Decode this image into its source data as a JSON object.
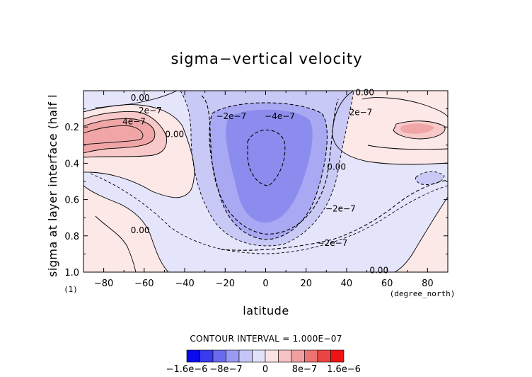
{
  "chart_data": {
    "type": "contour",
    "title": "sigma−vertical velocity",
    "xlabel": "latitude",
    "x_unit": "(degree_north)",
    "ylabel": "sigma at layer interface (half l",
    "y_unit": "(1)",
    "xlim": [
      -90,
      90
    ],
    "ylim": [
      1.0,
      0.0
    ],
    "x_ticks": [
      -80,
      -60,
      -40,
      -20,
      0,
      20,
      40,
      60,
      80
    ],
    "y_ticks": [
      0.2,
      0.4,
      0.6,
      0.8,
      1.0
    ],
    "x_tick_labels": [
      "−80",
      "−60",
      "−40",
      "−20",
      "0",
      "20",
      "40",
      "60",
      "80"
    ],
    "y_tick_labels": [
      "0.2",
      "0.4",
      "0.6",
      "0.8",
      "1.0"
    ],
    "contour_interval_label": "CONTOUR INTERVAL = 1.000E−07",
    "contour_interval": 1e-07,
    "contour_labels": [
      {
        "text": "0.00",
        "x": -62,
        "y": 0.04
      },
      {
        "text": "0.00",
        "x": 49,
        "y": 0.01
      },
      {
        "text": "2e−7",
        "x": -57,
        "y": 0.11
      },
      {
        "text": "4e−7",
        "x": -65,
        "y": 0.17
      },
      {
        "text": "−2e−7",
        "x": -17,
        "y": 0.14
      },
      {
        "text": "−4e−7",
        "x": 7,
        "y": 0.14
      },
      {
        "text": "2e−7",
        "x": 47,
        "y": 0.12
      },
      {
        "text": "0.00",
        "x": -45,
        "y": 0.24
      },
      {
        "text": "0.00",
        "x": 35,
        "y": 0.42
      },
      {
        "text": "−2e−7",
        "x": 37,
        "y": 0.65
      },
      {
        "text": "−2e−7",
        "x": 33,
        "y": 0.84
      },
      {
        "text": "0.00",
        "x": -62,
        "y": 0.77
      },
      {
        "text": "0.00",
        "x": 56,
        "y": 0.99
      }
    ],
    "colorbar": {
      "levels": [
        -1.6e-06,
        -8e-07,
        0,
        8e-07,
        1.6e-06
      ],
      "tick_labels": [
        "−1.6e−6",
        "−8e−7",
        "0",
        "8e−7",
        "1.6e−6"
      ],
      "colors": [
        "#0a0aee",
        "#3a3aee",
        "#6a6aef",
        "#9a9af2",
        "#c5c5f6",
        "#e2e2fb",
        "#fbe1e1",
        "#f5c3c3",
        "#ef9f9f",
        "#ec7474",
        "#ec4545",
        "#ee1414"
      ]
    }
  },
  "colors": {
    "pos1": "#fde8e8",
    "pos2": "#f7c9c9",
    "pos3": "#f0a6a6",
    "neg1": "#e4e4fb",
    "neg2": "#c9c9f6",
    "neg3": "#a9a9f3",
    "neg4": "#8c8cee"
  }
}
